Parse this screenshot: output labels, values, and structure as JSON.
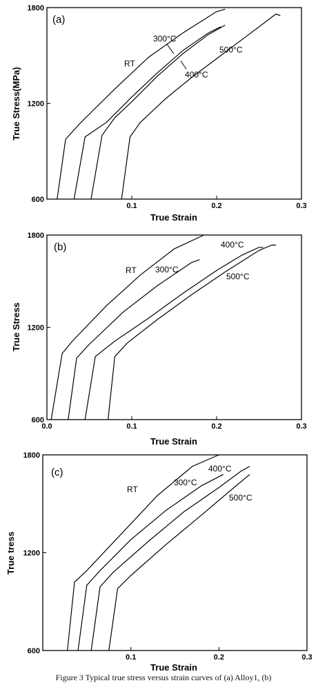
{
  "chart_data": [
    {
      "type": "line",
      "panel_label": "(a)",
      "xlabel": "True Strain",
      "ylabel": "True Stress(MPa)",
      "xlim": [
        0.0,
        0.3
      ],
      "ylim": [
        600,
        1800
      ],
      "x_ticks": [
        "0.1",
        "0.2",
        "0.3"
      ],
      "y_ticks": [
        "600",
        "1200",
        "1800"
      ],
      "grid": false,
      "series": [
        {
          "name": "RT",
          "x": [
            0.012,
            0.022,
            0.04,
            0.08,
            0.12,
            0.16,
            0.2,
            0.21
          ],
          "y": [
            600,
            975,
            1080,
            1290,
            1490,
            1640,
            1775,
            1790
          ]
        },
        {
          "name": "300°C",
          "x": [
            0.032,
            0.045,
            0.07,
            0.1,
            0.13,
            0.16,
            0.19,
            0.205
          ],
          "y": [
            600,
            990,
            1080,
            1240,
            1390,
            1530,
            1640,
            1680
          ]
        },
        {
          "name": "400°C",
          "x": [
            0.052,
            0.065,
            0.08,
            0.1,
            0.13,
            0.16,
            0.19,
            0.21
          ],
          "y": [
            600,
            1000,
            1110,
            1210,
            1370,
            1510,
            1630,
            1690
          ]
        },
        {
          "name": "500°C",
          "x": [
            0.088,
            0.098,
            0.11,
            0.14,
            0.17,
            0.2,
            0.23,
            0.26,
            0.27,
            0.275
          ],
          "y": [
            600,
            990,
            1080,
            1230,
            1360,
            1480,
            1600,
            1720,
            1760,
            1750
          ]
        }
      ],
      "annotations": [
        "RT",
        "300°C",
        "400°C",
        "500°C"
      ]
    },
    {
      "type": "line",
      "panel_label": "(b)",
      "xlabel": "True Strain",
      "ylabel": "True Stress",
      "xlim": [
        0.0,
        0.3
      ],
      "ylim": [
        600,
        1800
      ],
      "x_ticks": [
        "0.0",
        "0.1",
        "0.2",
        "0.3"
      ],
      "y_ticks": [
        "600",
        "1200",
        "1800"
      ],
      "grid": false,
      "series": [
        {
          "name": "RT",
          "x": [
            0.005,
            0.018,
            0.03,
            0.07,
            0.11,
            0.15,
            0.185
          ],
          "y": [
            600,
            1030,
            1110,
            1340,
            1540,
            1710,
            1800
          ]
        },
        {
          "name": "300°C",
          "x": [
            0.025,
            0.035,
            0.05,
            0.09,
            0.13,
            0.17,
            0.18
          ],
          "y": [
            600,
            1000,
            1090,
            1300,
            1470,
            1620,
            1640
          ]
        },
        {
          "name": "400°C",
          "x": [
            0.045,
            0.057,
            0.08,
            0.12,
            0.16,
            0.2,
            0.23,
            0.25,
            0.255
          ],
          "y": [
            600,
            1010,
            1110,
            1260,
            1420,
            1570,
            1670,
            1720,
            1720
          ]
        },
        {
          "name": "500°C",
          "x": [
            0.072,
            0.08,
            0.095,
            0.13,
            0.17,
            0.21,
            0.25,
            0.265,
            0.27
          ],
          "y": [
            600,
            1010,
            1100,
            1250,
            1410,
            1560,
            1700,
            1735,
            1735
          ]
        }
      ],
      "annotations": [
        "RT",
        "300°C",
        "400°C",
        "500°C"
      ]
    },
    {
      "type": "line",
      "panel_label": "(c)",
      "xlabel": "True Strain",
      "ylabel": "True tress",
      "xlim": [
        0.0,
        0.3
      ],
      "ylim": [
        600,
        1800
      ],
      "x_ticks": [
        "0.1",
        "0.2",
        "0.3"
      ],
      "y_ticks": [
        "600",
        "1200",
        "1800"
      ],
      "grid": false,
      "series": [
        {
          "name": "RT",
          "x": [
            0.028,
            0.036,
            0.05,
            0.09,
            0.13,
            0.17,
            0.2
          ],
          "y": [
            600,
            1020,
            1090,
            1320,
            1550,
            1730,
            1800
          ]
        },
        {
          "name": "300°C",
          "x": [
            0.04,
            0.05,
            0.065,
            0.1,
            0.14,
            0.18,
            0.205
          ],
          "y": [
            600,
            1000,
            1090,
            1280,
            1460,
            1610,
            1680
          ]
        },
        {
          "name": "400°C",
          "x": [
            0.055,
            0.065,
            0.08,
            0.12,
            0.16,
            0.2,
            0.225,
            0.235
          ],
          "y": [
            600,
            990,
            1080,
            1270,
            1450,
            1600,
            1700,
            1730
          ]
        },
        {
          "name": "500°C",
          "x": [
            0.075,
            0.085,
            0.1,
            0.14,
            0.18,
            0.215,
            0.235
          ],
          "y": [
            600,
            980,
            1060,
            1250,
            1430,
            1590,
            1680
          ]
        }
      ],
      "annotations": [
        "RT",
        "300°C",
        "400°C",
        "500°C"
      ]
    }
  ],
  "caption": "Figure 3 Typical true stress versus strain curves of (a) Alloy1, (b)"
}
